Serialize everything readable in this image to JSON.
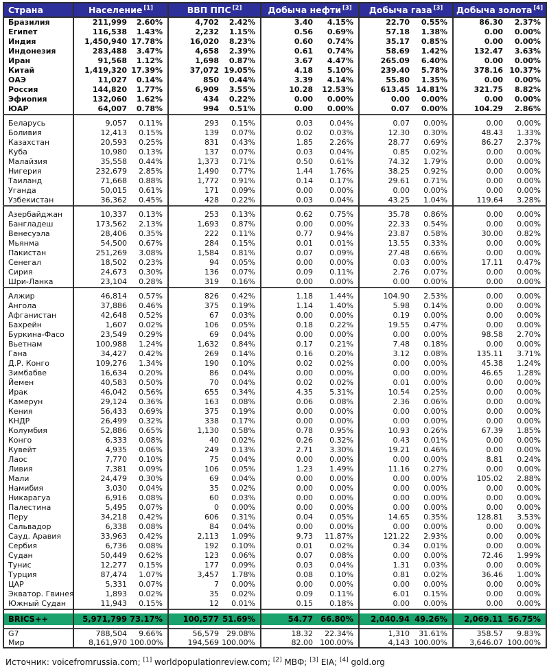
{
  "colors": {
    "header_bg": "#2D2F9B",
    "brics_bg": "#1AA36D",
    "border": "#2f2f2f"
  },
  "table": {
    "headers": [
      {
        "label": "Страна",
        "sup": ""
      },
      {
        "label": "Население",
        "sup": "[1]"
      },
      {
        "label": "ВВП ППС",
        "sup": "[2]"
      },
      {
        "label": "Добыча нефти",
        "sup": "[3]"
      },
      {
        "label": "Добыча газа",
        "sup": "[3]"
      },
      {
        "label": "Добыча золота",
        "sup": "[4]"
      }
    ]
  },
  "chart_data": {
    "type": "table",
    "columns": [
      "Страна",
      "Население",
      "Население %",
      "ВВП ППС",
      "ВВП ППС %",
      "Добыча нефти",
      "Добыча нефти %",
      "Добыча газа",
      "Добыча газа %",
      "Добыча золота",
      "Добыча золота %"
    ],
    "groups": [
      {
        "bold": true,
        "rows": [
          [
            "Бразилия",
            "211,999",
            "2.60%",
            "4,702",
            "2.42%",
            "3.40",
            "4.15%",
            "22.70",
            "0.55%",
            "86.30",
            "2.37%"
          ],
          [
            "Египет",
            "116,538",
            "1.43%",
            "2,232",
            "1.15%",
            "0.56",
            "0.69%",
            "57.18",
            "1.38%",
            "0.00",
            "0.00%"
          ],
          [
            "Индия",
            "1,450,940",
            "17.78%",
            "16,020",
            "8.23%",
            "0.60",
            "0.74%",
            "35.17",
            "0.85%",
            "0.00",
            "0.00%"
          ],
          [
            "Индонезия",
            "283,488",
            "3.47%",
            "4,658",
            "2.39%",
            "0.61",
            "0.74%",
            "58.69",
            "1.42%",
            "132.47",
            "3.63%"
          ],
          [
            "Иран",
            "91,568",
            "1.12%",
            "1,698",
            "0.87%",
            "3.67",
            "4.47%",
            "265.09",
            "6.40%",
            "0.00",
            "0.00%"
          ],
          [
            "Китай",
            "1,419,320",
            "17.39%",
            "37,072",
            "19.05%",
            "4.18",
            "5.10%",
            "239.40",
            "5.78%",
            "378.16",
            "10.37%"
          ],
          [
            "ОАЭ",
            "11,027",
            "0.14%",
            "850",
            "0.44%",
            "3.39",
            "4.14%",
            "55.80",
            "1.35%",
            "0.00",
            "0.00%"
          ],
          [
            "Россия",
            "144,820",
            "1.77%",
            "6,909",
            "3.55%",
            "10.28",
            "12.53%",
            "613.45",
            "14.81%",
            "321.75",
            "8.82%"
          ],
          [
            "Эфиопия",
            "132,060",
            "1.62%",
            "434",
            "0.22%",
            "0.00",
            "0.00%",
            "0.00",
            "0.00%",
            "0.00",
            "0.00%"
          ],
          [
            "ЮАР",
            "64,007",
            "0.78%",
            "994",
            "0.51%",
            "0.00",
            "0.00%",
            "0.07",
            "0.00%",
            "104.29",
            "2.86%"
          ]
        ]
      },
      {
        "bold": false,
        "rows": [
          [
            "Беларусь",
            "9,057",
            "0.11%",
            "293",
            "0.15%",
            "0.03",
            "0.04%",
            "0.07",
            "0.00%",
            "0.00",
            "0.00%"
          ],
          [
            "Боливия",
            "12,413",
            "0.15%",
            "139",
            "0.07%",
            "0.02",
            "0.03%",
            "12.30",
            "0.30%",
            "48.43",
            "1.33%"
          ],
          [
            "Казахстан",
            "20,593",
            "0.25%",
            "831",
            "0.43%",
            "1.85",
            "2.26%",
            "28.77",
            "0.69%",
            "86.27",
            "2.37%"
          ],
          [
            "Куба",
            "10,980",
            "0.13%",
            "137",
            "0.07%",
            "0.03",
            "0.04%",
            "0.85",
            "0.02%",
            "0.00",
            "0.00%"
          ],
          [
            "Малайзия",
            "35,558",
            "0.44%",
            "1,373",
            "0.71%",
            "0.50",
            "0.61%",
            "74.32",
            "1.79%",
            "0.00",
            "0.00%"
          ],
          [
            "Нигерия",
            "232,679",
            "2.85%",
            "1,490",
            "0.77%",
            "1.44",
            "1.76%",
            "38.25",
            "0.92%",
            "0.00",
            "0.00%"
          ],
          [
            "Таиланд",
            "71,668",
            "0.88%",
            "1,772",
            "0.91%",
            "0.14",
            "0.17%",
            "29.61",
            "0.71%",
            "0.00",
            "0.00%"
          ],
          [
            "Уганда",
            "50,015",
            "0.61%",
            "171",
            "0.09%",
            "0.00",
            "0.00%",
            "0.00",
            "0.00%",
            "0.00",
            "0.00%"
          ],
          [
            "Узбекистан",
            "36,362",
            "0.45%",
            "428",
            "0.22%",
            "0.03",
            "0.04%",
            "43.25",
            "1.04%",
            "119.64",
            "3.28%"
          ]
        ]
      },
      {
        "bold": false,
        "rows": [
          [
            "Азербайджан",
            "10,337",
            "0.13%",
            "253",
            "0.13%",
            "0.62",
            "0.75%",
            "35.78",
            "0.86%",
            "0.00",
            "0.00%"
          ],
          [
            "Бангладеш",
            "173,562",
            "2.13%",
            "1,693",
            "0.87%",
            "0.00",
            "0.00%",
            "22.33",
            "0.54%",
            "0.00",
            "0.00%"
          ],
          [
            "Венесуэла",
            "28,406",
            "0.35%",
            "222",
            "0.11%",
            "0.77",
            "0.94%",
            "23.87",
            "0.58%",
            "30.00",
            "0.82%"
          ],
          [
            "Мьянма",
            "54,500",
            "0.67%",
            "284",
            "0.15%",
            "0.01",
            "0.01%",
            "13.55",
            "0.33%",
            "0.00",
            "0.00%"
          ],
          [
            "Пакистан",
            "251,269",
            "3.08%",
            "1,584",
            "0.81%",
            "0.07",
            "0.09%",
            "27.48",
            "0.66%",
            "0.00",
            "0.00%"
          ],
          [
            "Сенегал",
            "18,502",
            "0.23%",
            "94",
            "0.05%",
            "0.00",
            "0.00%",
            "0.03",
            "0.00%",
            "17.11",
            "0.47%"
          ],
          [
            "Сирия",
            "24,673",
            "0.30%",
            "136",
            "0.07%",
            "0.09",
            "0.11%",
            "2.76",
            "0.07%",
            "0.00",
            "0.00%"
          ],
          [
            "Шри-Ланка",
            "23,104",
            "0.28%",
            "319",
            "0.16%",
            "0.00",
            "0.00%",
            "0.00",
            "0.00%",
            "0.00",
            "0.00%"
          ]
        ]
      },
      {
        "bold": false,
        "rows": [
          [
            "Алжир",
            "46,814",
            "0.57%",
            "826",
            "0.42%",
            "1.18",
            "1.44%",
            "104.90",
            "2.53%",
            "0.00",
            "0.00%"
          ],
          [
            "Ангола",
            "37,886",
            "0.46%",
            "375",
            "0.19%",
            "1.14",
            "1.40%",
            "5.98",
            "0.14%",
            "0.00",
            "0.00%"
          ],
          [
            "Афганистан",
            "42,648",
            "0.52%",
            "67",
            "0.03%",
            "0.00",
            "0.00%",
            "0.19",
            "0.00%",
            "0.00",
            "0.00%"
          ],
          [
            "Бахрейн",
            "1,607",
            "0.02%",
            "106",
            "0.05%",
            "0.18",
            "0.22%",
            "19.55",
            "0.47%",
            "0.00",
            "0.00%"
          ],
          [
            "Буркина-Фасо",
            "23,549",
            "0.29%",
            "69",
            "0.04%",
            "0.00",
            "0.00%",
            "0.00",
            "0.00%",
            "98.58",
            "2.70%"
          ],
          [
            "Вьетнам",
            "100,988",
            "1.24%",
            "1,632",
            "0.84%",
            "0.17",
            "0.21%",
            "7.48",
            "0.18%",
            "0.00",
            "0.00%"
          ],
          [
            "Гана",
            "34,427",
            "0.42%",
            "269",
            "0.14%",
            "0.16",
            "0.20%",
            "3.12",
            "0.08%",
            "135.11",
            "3.71%"
          ],
          [
            "Д.Р. Конго",
            "109,276",
            "1.34%",
            "190",
            "0.10%",
            "0.02",
            "0.02%",
            "0.00",
            "0.00%",
            "45.38",
            "1.24%"
          ],
          [
            "Зимбабве",
            "16,634",
            "0.20%",
            "86",
            "0.04%",
            "0.00",
            "0.00%",
            "0.00",
            "0.00%",
            "46.65",
            "1.28%"
          ],
          [
            "Йемен",
            "40,583",
            "0.50%",
            "70",
            "0.04%",
            "0.02",
            "0.02%",
            "0.01",
            "0.00%",
            "0.00",
            "0.00%"
          ],
          [
            "Ирак",
            "46,042",
            "0.56%",
            "655",
            "0.34%",
            "4.35",
            "5.31%",
            "10.54",
            "0.25%",
            "0.00",
            "0.00%"
          ],
          [
            "Камерун",
            "29,124",
            "0.36%",
            "163",
            "0.08%",
            "0.06",
            "0.08%",
            "2.36",
            "0.06%",
            "0.00",
            "0.00%"
          ],
          [
            "Кения",
            "56,433",
            "0.69%",
            "375",
            "0.19%",
            "0.00",
            "0.00%",
            "0.00",
            "0.00%",
            "0.00",
            "0.00%"
          ],
          [
            "КНДР",
            "26,499",
            "0.32%",
            "338",
            "0.17%",
            "0.00",
            "0.00%",
            "0.00",
            "0.00%",
            "0.00",
            "0.00%"
          ],
          [
            "Колумбия",
            "52,886",
            "0.65%",
            "1,130",
            "0.58%",
            "0.78",
            "0.95%",
            "10.93",
            "0.26%",
            "67.39",
            "1.85%"
          ],
          [
            "Конго",
            "6,333",
            "0.08%",
            "40",
            "0.02%",
            "0.26",
            "0.32%",
            "0.43",
            "0.01%",
            "0.00",
            "0.00%"
          ],
          [
            "Кувейт",
            "4,935",
            "0.06%",
            "249",
            "0.13%",
            "2.71",
            "3.30%",
            "19.21",
            "0.46%",
            "0.00",
            "0.00%"
          ],
          [
            "Лаос",
            "7,770",
            "0.10%",
            "75",
            "0.04%",
            "0.00",
            "0.00%",
            "0.00",
            "0.00%",
            "8.81",
            "0.24%"
          ],
          [
            "Ливия",
            "7,381",
            "0.09%",
            "106",
            "0.05%",
            "1.23",
            "1.49%",
            "11.16",
            "0.27%",
            "0.00",
            "0.00%"
          ],
          [
            "Мали",
            "24,479",
            "0.30%",
            "69",
            "0.04%",
            "0.00",
            "0.00%",
            "0.00",
            "0.00%",
            "105.02",
            "2.88%"
          ],
          [
            "Намибия",
            "3,030",
            "0.04%",
            "35",
            "0.02%",
            "0.00",
            "0.00%",
            "0.00",
            "0.00%",
            "0.00",
            "0.00%"
          ],
          [
            "Никарагуа",
            "6,916",
            "0.08%",
            "60",
            "0.03%",
            "0.00",
            "0.00%",
            "0.00",
            "0.00%",
            "0.00",
            "0.00%"
          ],
          [
            "Палестина",
            "5,495",
            "0.07%",
            "0",
            "0.00%",
            "0.00",
            "0.00%",
            "0.00",
            "0.00%",
            "0.00",
            "0.00%"
          ],
          [
            "Перу",
            "34,218",
            "0.42%",
            "606",
            "0.31%",
            "0.04",
            "0.05%",
            "14.65",
            "0.35%",
            "128.81",
            "3.53%"
          ],
          [
            "Сальвадор",
            "6,338",
            "0.08%",
            "84",
            "0.04%",
            "0.00",
            "0.00%",
            "0.00",
            "0.00%",
            "0.00",
            "0.00%"
          ],
          [
            "Сауд. Аравия",
            "33,963",
            "0.42%",
            "2,113",
            "1.09%",
            "9.73",
            "11.87%",
            "121.22",
            "2.93%",
            "0.00",
            "0.00%"
          ],
          [
            "Сербия",
            "6,736",
            "0.08%",
            "192",
            "0.10%",
            "0.01",
            "0.02%",
            "0.34",
            "0.01%",
            "0.00",
            "0.00%"
          ],
          [
            "Судан",
            "50,449",
            "0.62%",
            "123",
            "0.06%",
            "0.07",
            "0.08%",
            "0.00",
            "0.00%",
            "72.46",
            "1.99%"
          ],
          [
            "Тунис",
            "12,277",
            "0.15%",
            "177",
            "0.09%",
            "0.03",
            "0.04%",
            "1.31",
            "0.03%",
            "0.00",
            "0.00%"
          ],
          [
            "Турция",
            "87,474",
            "1.07%",
            "3,457",
            "1.78%",
            "0.08",
            "0.10%",
            "0.81",
            "0.02%",
            "36.46",
            "1.00%"
          ],
          [
            "ЦАР",
            "5,331",
            "0.07%",
            "7",
            "0.00%",
            "0.00",
            "0.00%",
            "0.00",
            "0.00%",
            "0.00",
            "0.00%"
          ],
          [
            "Экватор. Гвинея",
            "1,893",
            "0.02%",
            "35",
            "0.02%",
            "0.09",
            "0.11%",
            "6.01",
            "0.15%",
            "0.00",
            "0.00%"
          ],
          [
            "Южный Судан",
            "11,943",
            "0.15%",
            "12",
            "0.01%",
            "0.15",
            "0.18%",
            "0.00",
            "0.00%",
            "0.00",
            "0.00%"
          ]
        ]
      }
    ],
    "summary": {
      "brics": [
        "BRICS++",
        "5,971,799",
        "73.17%",
        "100,577",
        "51.69%",
        "54.77",
        "66.80%",
        "2,040.94",
        "49.26%",
        "2,069.11",
        "56.75%"
      ],
      "g7": [
        "G7",
        "788,504",
        "9.66%",
        "56,579",
        "29.08%",
        "18.32",
        "22.34%",
        "1,310",
        "31.61%",
        "358.57",
        "9.83%"
      ],
      "world": [
        "Мир",
        "8,161,970",
        "100.00%",
        "194,569",
        "100.00%",
        "82.00",
        "100.00%",
        "4,143",
        "100.00%",
        "3,646.07",
        "100.00%"
      ]
    }
  },
  "footer": {
    "parts": [
      {
        "t": "Источник: voicefromrussia.com; "
      },
      {
        "s": "[1]"
      },
      {
        "t": " worldpopulationreview.com; "
      },
      {
        "s": "[2]"
      },
      {
        "t": " МВФ; "
      },
      {
        "s": "[3]"
      },
      {
        "t": " EIA; "
      },
      {
        "s": "[4]"
      },
      {
        "t": " gold.org"
      }
    ]
  }
}
